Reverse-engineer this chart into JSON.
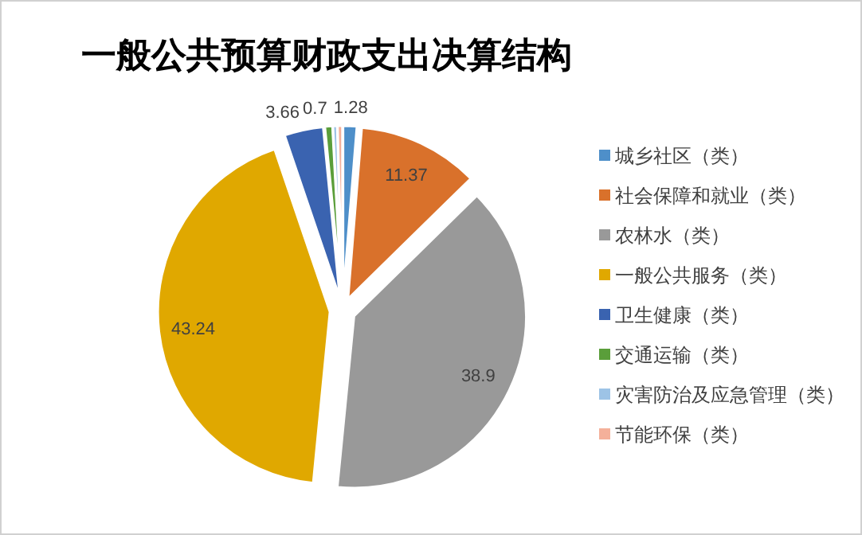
{
  "chart_data": {
    "type": "pie",
    "title": "一般公共预算财政支出决算结构",
    "categories": [
      "城乡社区（类）",
      "社会保障和就业（类）",
      "农林水（类）",
      "一般公共服务（类）",
      "卫生健康（类）",
      "交通运输（类）",
      "灾害防治及应急管理（类）",
      "节能环保（类）"
    ],
    "values": [
      1.28,
      11.37,
      38.9,
      43.24,
      3.66,
      0.7,
      0.4,
      0.45
    ],
    "colors": [
      "#4e8fc9",
      "#d9712b",
      "#999999",
      "#e0a800",
      "#3a63b0",
      "#5a9e3a",
      "#9dc3e6",
      "#f4b09a"
    ],
    "value_labels": [
      "1.28",
      "11.37",
      "38.9",
      "43.24",
      "3.66",
      "0.7",
      null,
      null
    ],
    "legend": "right"
  }
}
